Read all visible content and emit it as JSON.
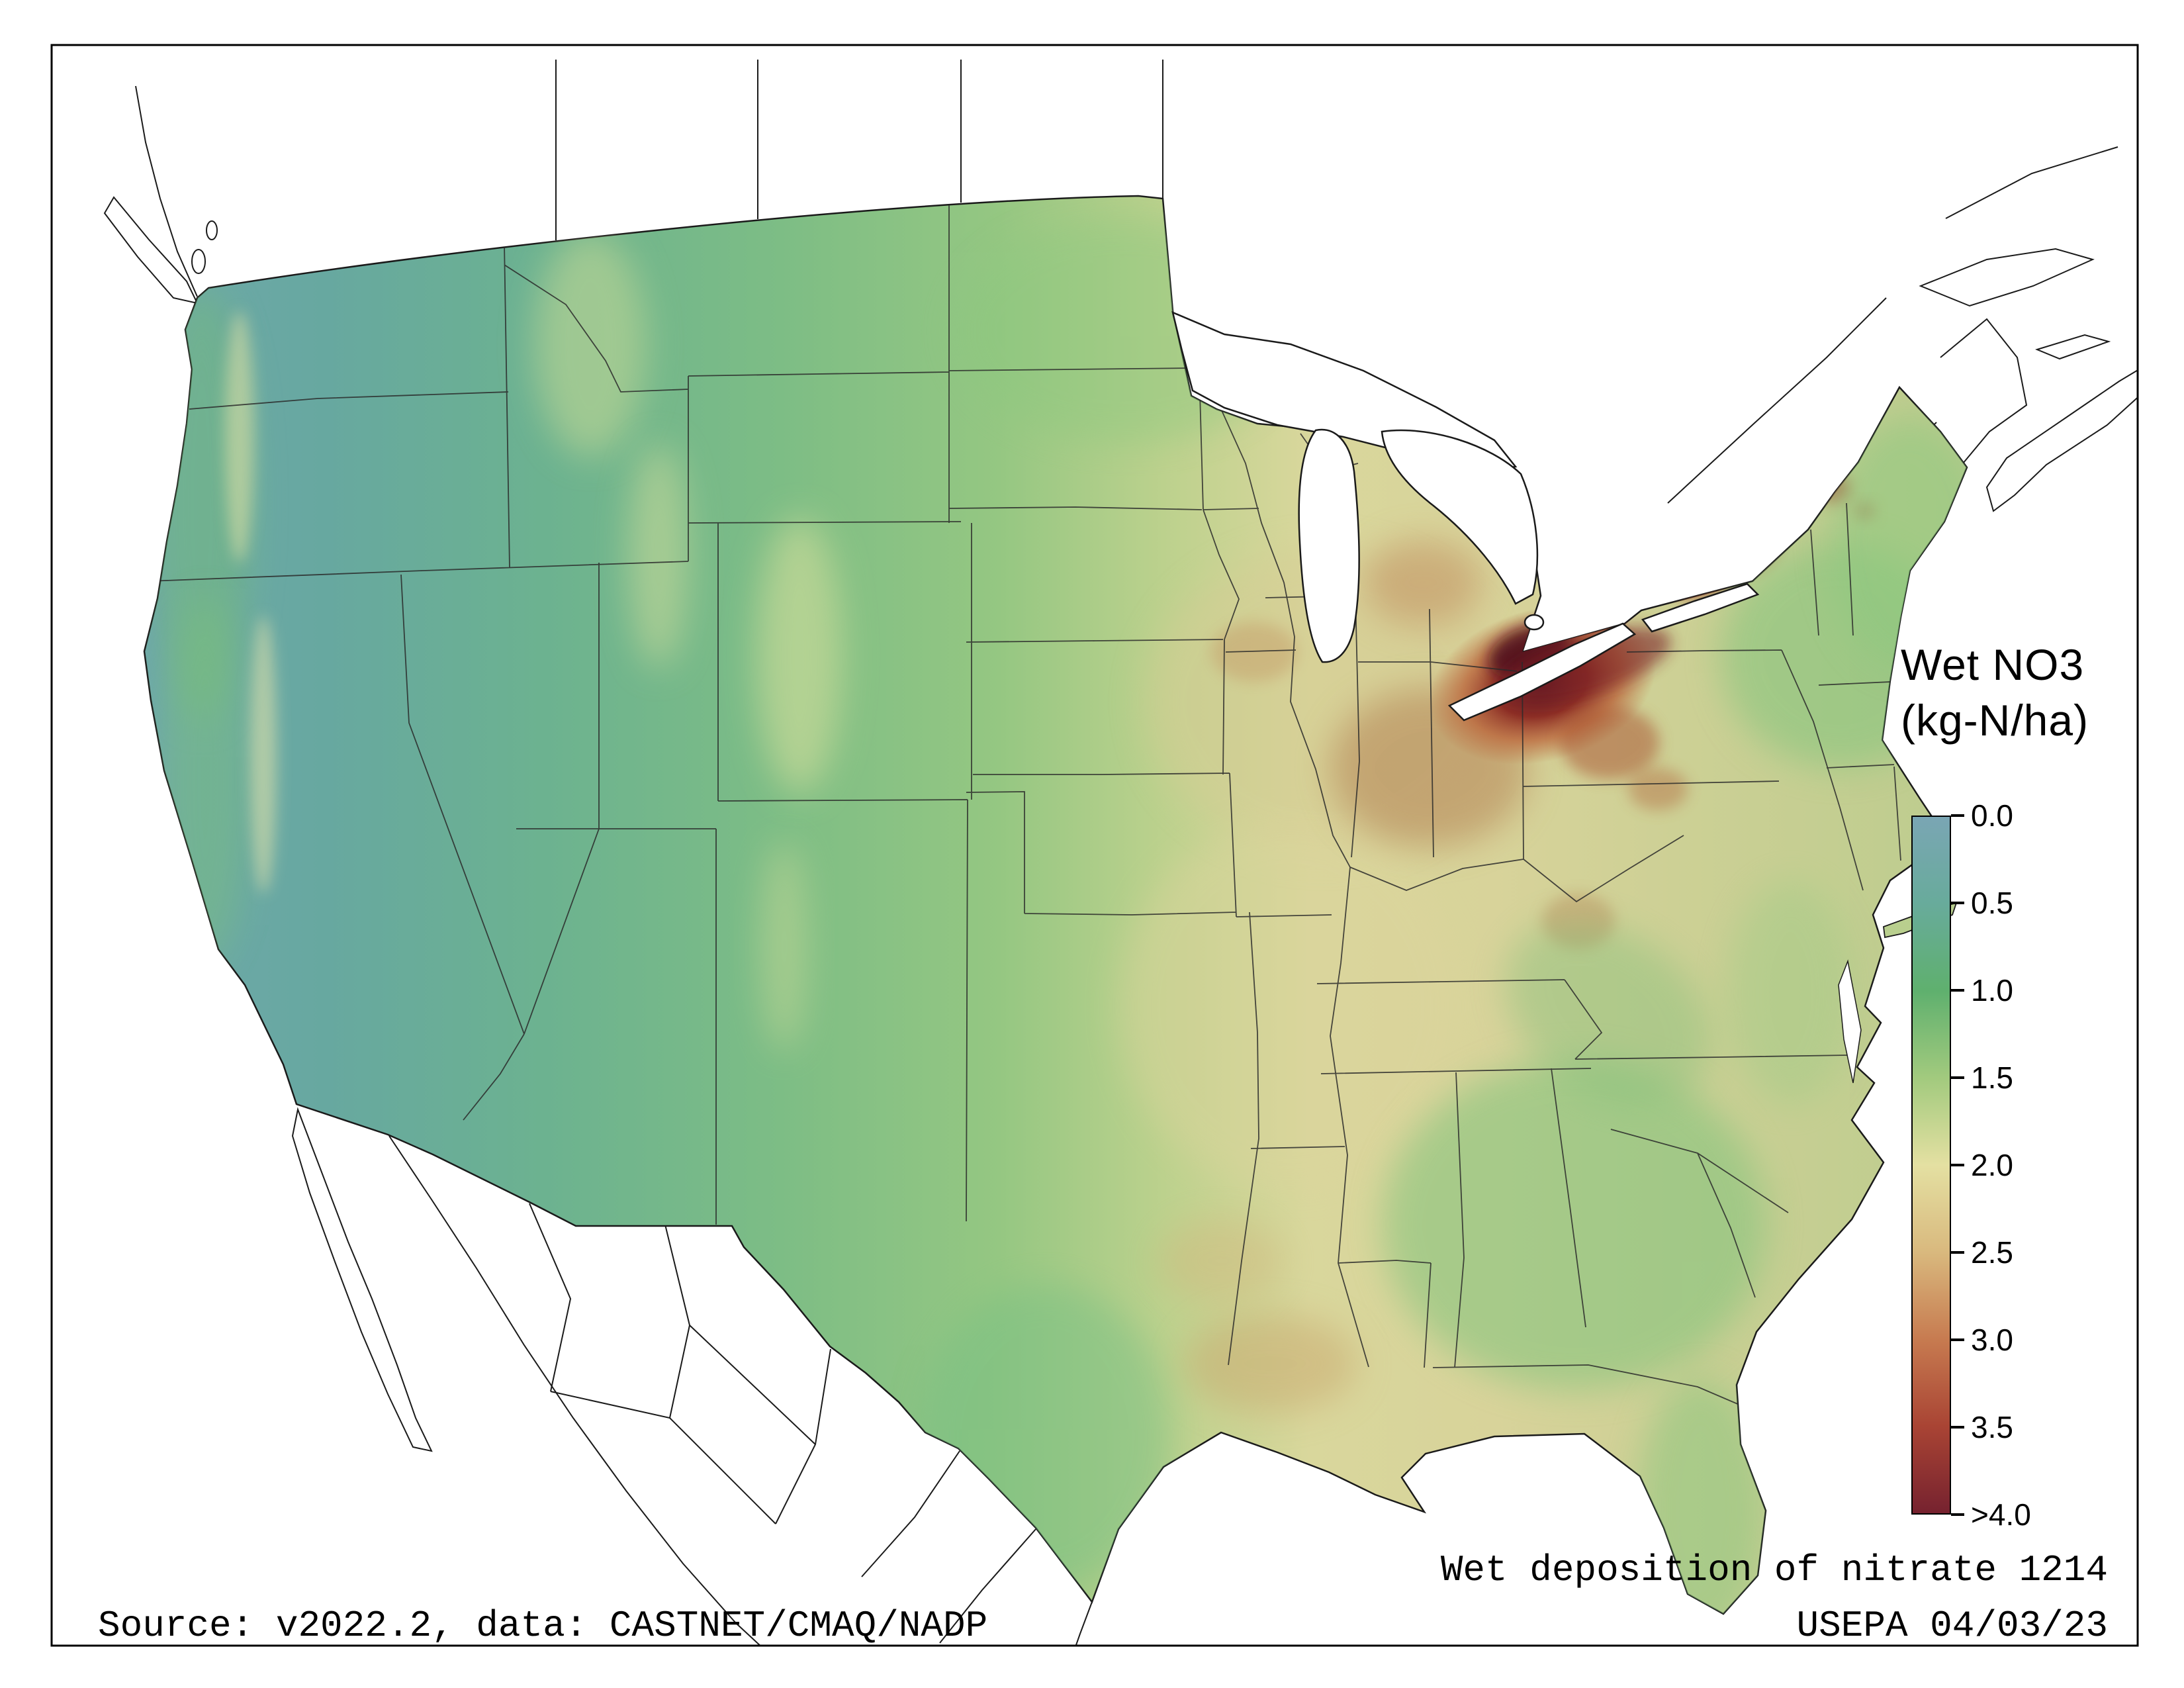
{
  "figure": {
    "caption": "Wet deposition of nitrate 1214",
    "source_note": "Source: v2022.2, data: CASTNET/CMAQ/NADP",
    "agency_date": "USEPA 04/03/23"
  },
  "legend": {
    "title_line1": "Wet NO3",
    "title_line2": "(kg-N/ha)",
    "ticks": [
      "0.0",
      "0.5",
      "1.0",
      "1.5",
      "2.0",
      "2.5",
      "3.0",
      "3.5",
      ">4.0"
    ],
    "stop_colors": [
      "#7aa6b4",
      "#68ab9b",
      "#5fb06e",
      "#a2ca7e",
      "#e4e0a2",
      "#d9b97e",
      "#c77b50",
      "#a94434",
      "#76222f"
    ]
  },
  "chart_data": {
    "type": "heatmap",
    "title": "Wet deposition of nitrate 1214",
    "variable": "Wet NO3",
    "units": "kg-N/ha",
    "region": "Contiguous United States with state boundaries, plus southern Canada and northern Mexico outlines",
    "scale": {
      "min": 0.0,
      "max": 4.0,
      "tick_values": [
        0.0,
        0.5,
        1.0,
        1.5,
        2.0,
        2.5,
        3.0,
        3.5,
        4.0
      ],
      "tick_labels": [
        "0.0",
        "0.5",
        "1.0",
        "1.5",
        "2.0",
        "2.5",
        "3.0",
        "3.5",
        ">4.0"
      ],
      "colors": [
        "#7aa6b4",
        "#68ab9b",
        "#5fb06e",
        "#a2ca7e",
        "#e4e0a2",
        "#d9b97e",
        "#c77b50",
        "#a94434",
        "#76222f"
      ],
      "legend_position": "right"
    },
    "pattern": [
      {
        "area": "Interior West, Great Basin, Pacific Northwest interior",
        "approx_value_kg_N_ha": "0.0-1.0"
      },
      {
        "area": "West coast ranges, Rockies, northern plains, Texas, Southeast, New England",
        "approx_value_kg_N_ha": "1.0-2.0"
      },
      {
        "area": "Corn Belt (Iowa, Illinois, Missouri), Gulf Coast Louisiana/East Texas",
        "approx_value_kg_N_ha": "2.0-2.5"
      },
      {
        "area": "Indiana, Ohio, lower Michigan, Pennsylvania valleys",
        "approx_value_kg_N_ha": "2.5-3.5"
      },
      {
        "area": "Lake Erie south shore, NW Pennsylvania, upstate New York (Adirondacks)",
        "approx_value_kg_N_ha": "3.5->4.0"
      }
    ]
  }
}
